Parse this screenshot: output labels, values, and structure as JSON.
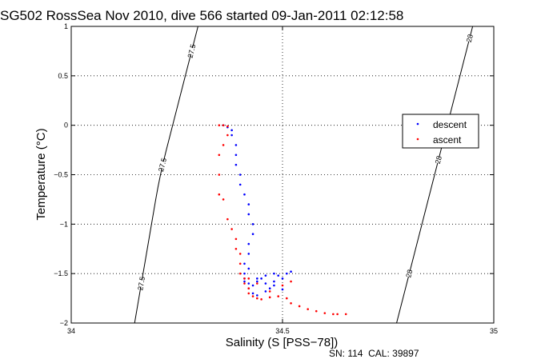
{
  "chart_data": {
    "type": "scatter",
    "title": "SG502 RossSea Nov 2010, dive 566 started 09-Jan-2011 02:12:58",
    "xlabel": "Salinity (S [PSS−78])",
    "ylabel": "Temperature (°C)",
    "footer": "SN: 114  CAL: 39897",
    "xlim": [
      34,
      35
    ],
    "ylim": [
      -2,
      1
    ],
    "x_ticks": [
      34,
      34.5,
      35
    ],
    "x_tick_labels": [
      "34",
      "34.5",
      "35"
    ],
    "y_ticks": [
      1,
      0.5,
      0,
      -0.5,
      -1,
      -1.5,
      -2
    ],
    "y_tick_labels": [
      "1",
      "0.5",
      "0",
      "−0.5",
      "−1",
      "−1.5",
      "−2"
    ],
    "grid": true,
    "legend_position": "right",
    "isopycnals": [
      {
        "label": "27.5",
        "points": [
          [
            34.3,
            1.0
          ],
          [
            34.27,
            0.5
          ],
          [
            34.24,
            0.0
          ],
          [
            34.21,
            -0.5
          ],
          [
            34.19,
            -1.0
          ],
          [
            34.17,
            -1.5
          ],
          [
            34.15,
            -2.0
          ]
        ]
      },
      {
        "label": "28",
        "points": [
          [
            34.95,
            1.0
          ],
          [
            34.92,
            0.5
          ],
          [
            34.89,
            0.0
          ],
          [
            34.86,
            -0.5
          ],
          [
            34.83,
            -1.0
          ],
          [
            34.8,
            -1.5
          ],
          [
            34.77,
            -2.0
          ]
        ]
      }
    ],
    "isopycnal_label_positions": [
      {
        "series": "27.5",
        "at_y": [
          0.75,
          -0.4,
          -1.6
        ]
      },
      {
        "series": "28",
        "at_y": [
          0.88,
          -0.35,
          -1.5
        ]
      }
    ],
    "series": [
      {
        "name": "descent",
        "color": "#0000ff",
        "x": [
          34.36,
          34.37,
          34.38,
          34.38,
          34.39,
          34.39,
          34.39,
          34.4,
          34.4,
          34.41,
          34.42,
          34.42,
          34.43,
          34.43,
          34.42,
          34.42,
          34.41,
          34.41,
          34.41,
          34.42,
          34.42,
          34.43,
          34.44,
          34.45,
          34.46,
          34.47,
          34.48,
          34.49,
          34.5,
          34.51,
          34.52,
          34.43,
          34.44,
          34.46,
          34.48,
          34.5,
          34.44,
          34.46,
          34.48,
          34.41,
          34.42
        ],
        "y": [
          0.0,
          -0.02,
          -0.05,
          -0.1,
          -0.2,
          -0.3,
          -0.4,
          -0.5,
          -0.6,
          -0.7,
          -0.8,
          -0.9,
          -1.0,
          -1.1,
          -1.2,
          -1.3,
          -1.4,
          -1.5,
          -1.55,
          -1.6,
          -1.65,
          -1.62,
          -1.58,
          -1.55,
          -1.6,
          -1.65,
          -1.58,
          -1.52,
          -1.55,
          -1.5,
          -1.48,
          -1.7,
          -1.72,
          -1.68,
          -1.62,
          -1.66,
          -1.55,
          -1.52,
          -1.5,
          -1.58,
          -1.45
        ]
      },
      {
        "name": "ascent",
        "color": "#ff0000",
        "x": [
          34.35,
          34.36,
          34.37,
          34.37,
          34.36,
          34.35,
          34.35,
          34.35,
          34.36,
          34.37,
          34.38,
          34.39,
          34.39,
          34.4,
          34.4,
          34.4,
          34.41,
          34.41,
          34.42,
          34.42,
          34.43,
          34.44,
          34.45,
          34.47,
          34.49,
          34.51,
          34.52,
          34.54,
          34.56,
          34.58,
          34.6,
          34.62,
          34.63,
          34.65,
          34.42,
          34.44,
          34.47,
          34.5,
          34.52
        ],
        "y": [
          0.0,
          0.0,
          -0.01,
          -0.1,
          -0.2,
          -0.3,
          -0.5,
          -0.7,
          -0.75,
          -0.95,
          -1.05,
          -1.15,
          -1.25,
          -1.3,
          -1.4,
          -1.5,
          -1.55,
          -1.6,
          -1.65,
          -1.7,
          -1.73,
          -1.75,
          -1.76,
          -1.74,
          -1.73,
          -1.75,
          -1.8,
          -1.83,
          -1.86,
          -1.88,
          -1.9,
          -1.91,
          -1.91,
          -1.91,
          -1.55,
          -1.6,
          -1.68,
          -1.62,
          -1.58
        ]
      }
    ]
  }
}
